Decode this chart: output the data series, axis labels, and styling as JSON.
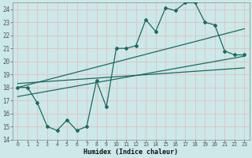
{
  "background_color": "#cce8e8",
  "grid_color": "#e8c8c8",
  "line_color": "#1a6b60",
  "xlabel": "Humidex (Indice chaleur)",
  "xlim": [
    0,
    23
  ],
  "ylim": [
    14,
    24.5
  ],
  "yticks": [
    14,
    15,
    16,
    17,
    18,
    19,
    20,
    21,
    22,
    23,
    24
  ],
  "xticks": [
    0,
    1,
    2,
    3,
    4,
    5,
    6,
    7,
    8,
    9,
    10,
    11,
    12,
    13,
    14,
    15,
    16,
    17,
    18,
    19,
    20,
    21,
    22,
    23
  ],
  "main_line_x": [
    0,
    1,
    2,
    3,
    4,
    5,
    6,
    7,
    8,
    9,
    10,
    11,
    12,
    13,
    14,
    15,
    16,
    17,
    18,
    19,
    20,
    21,
    22,
    23
  ],
  "main_line_y": [
    18,
    18,
    16.8,
    15,
    14.7,
    15.5,
    14.7,
    15,
    18.5,
    16.5,
    21,
    21,
    21.2,
    23.2,
    22.3,
    24.1,
    23.9,
    24.5,
    24.5,
    23,
    22.8,
    20.8,
    20.5,
    20.5
  ],
  "trend1_x": [
    0,
    23
  ],
  "trend1_y": [
    18.0,
    22.5
  ],
  "trend2_x": [
    0,
    23
  ],
  "trend2_y": [
    18.3,
    19.5
  ],
  "trend3_x": [
    0,
    23
  ],
  "trend3_y": [
    17.3,
    20.4
  ]
}
